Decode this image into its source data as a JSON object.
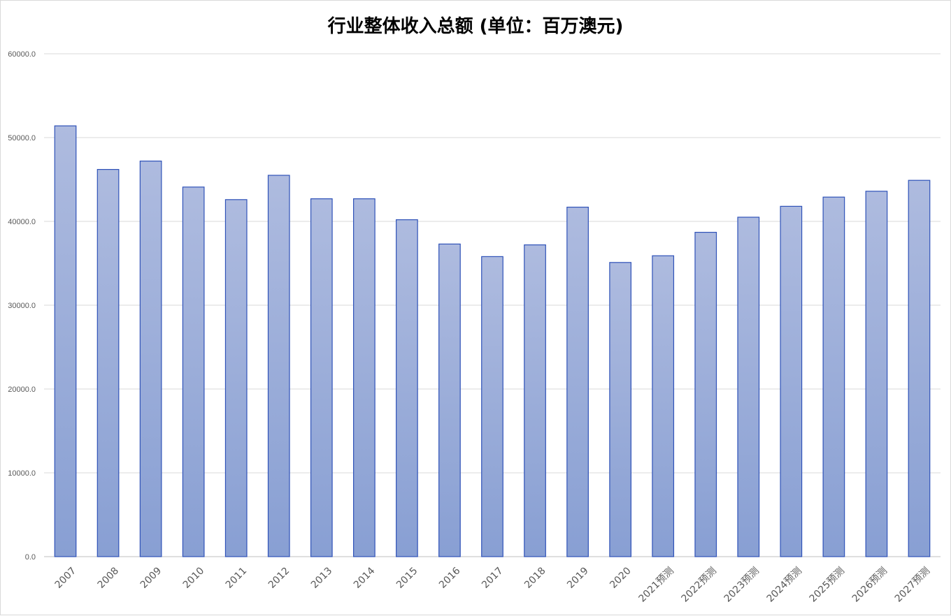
{
  "chart_data": {
    "type": "bar",
    "title": "行业整体收入总额 (单位：百万澳元)",
    "xlabel": "",
    "ylabel": "",
    "ylim": [
      0,
      60000
    ],
    "yticks": [
      "0.0",
      "10000.0",
      "20000.0",
      "30000.0",
      "40000.0",
      "50000.0",
      "60000.0"
    ],
    "categories": [
      "2007",
      "2008",
      "2009",
      "2010",
      "2011",
      "2012",
      "2013",
      "2014",
      "2015",
      "2016",
      "2017",
      "2018",
      "2019",
      "2020",
      "2021预测",
      "2022预测",
      "2023预测",
      "2024预测",
      "2025预测",
      "2026预测",
      "2027预测"
    ],
    "values": [
      51400,
      46200,
      47200,
      44100,
      42600,
      45500,
      42700,
      42700,
      40200,
      37300,
      35800,
      37200,
      41700,
      35100,
      35900,
      38700,
      40500,
      41800,
      42900,
      43600,
      44900
    ],
    "grid": true,
    "legend": "none",
    "colors": {
      "bar_fill_top": "#aebbdf",
      "bar_fill_bottom": "#889fd3",
      "bar_border": "#2f52b8",
      "gridline": "#d9d9d9"
    }
  }
}
